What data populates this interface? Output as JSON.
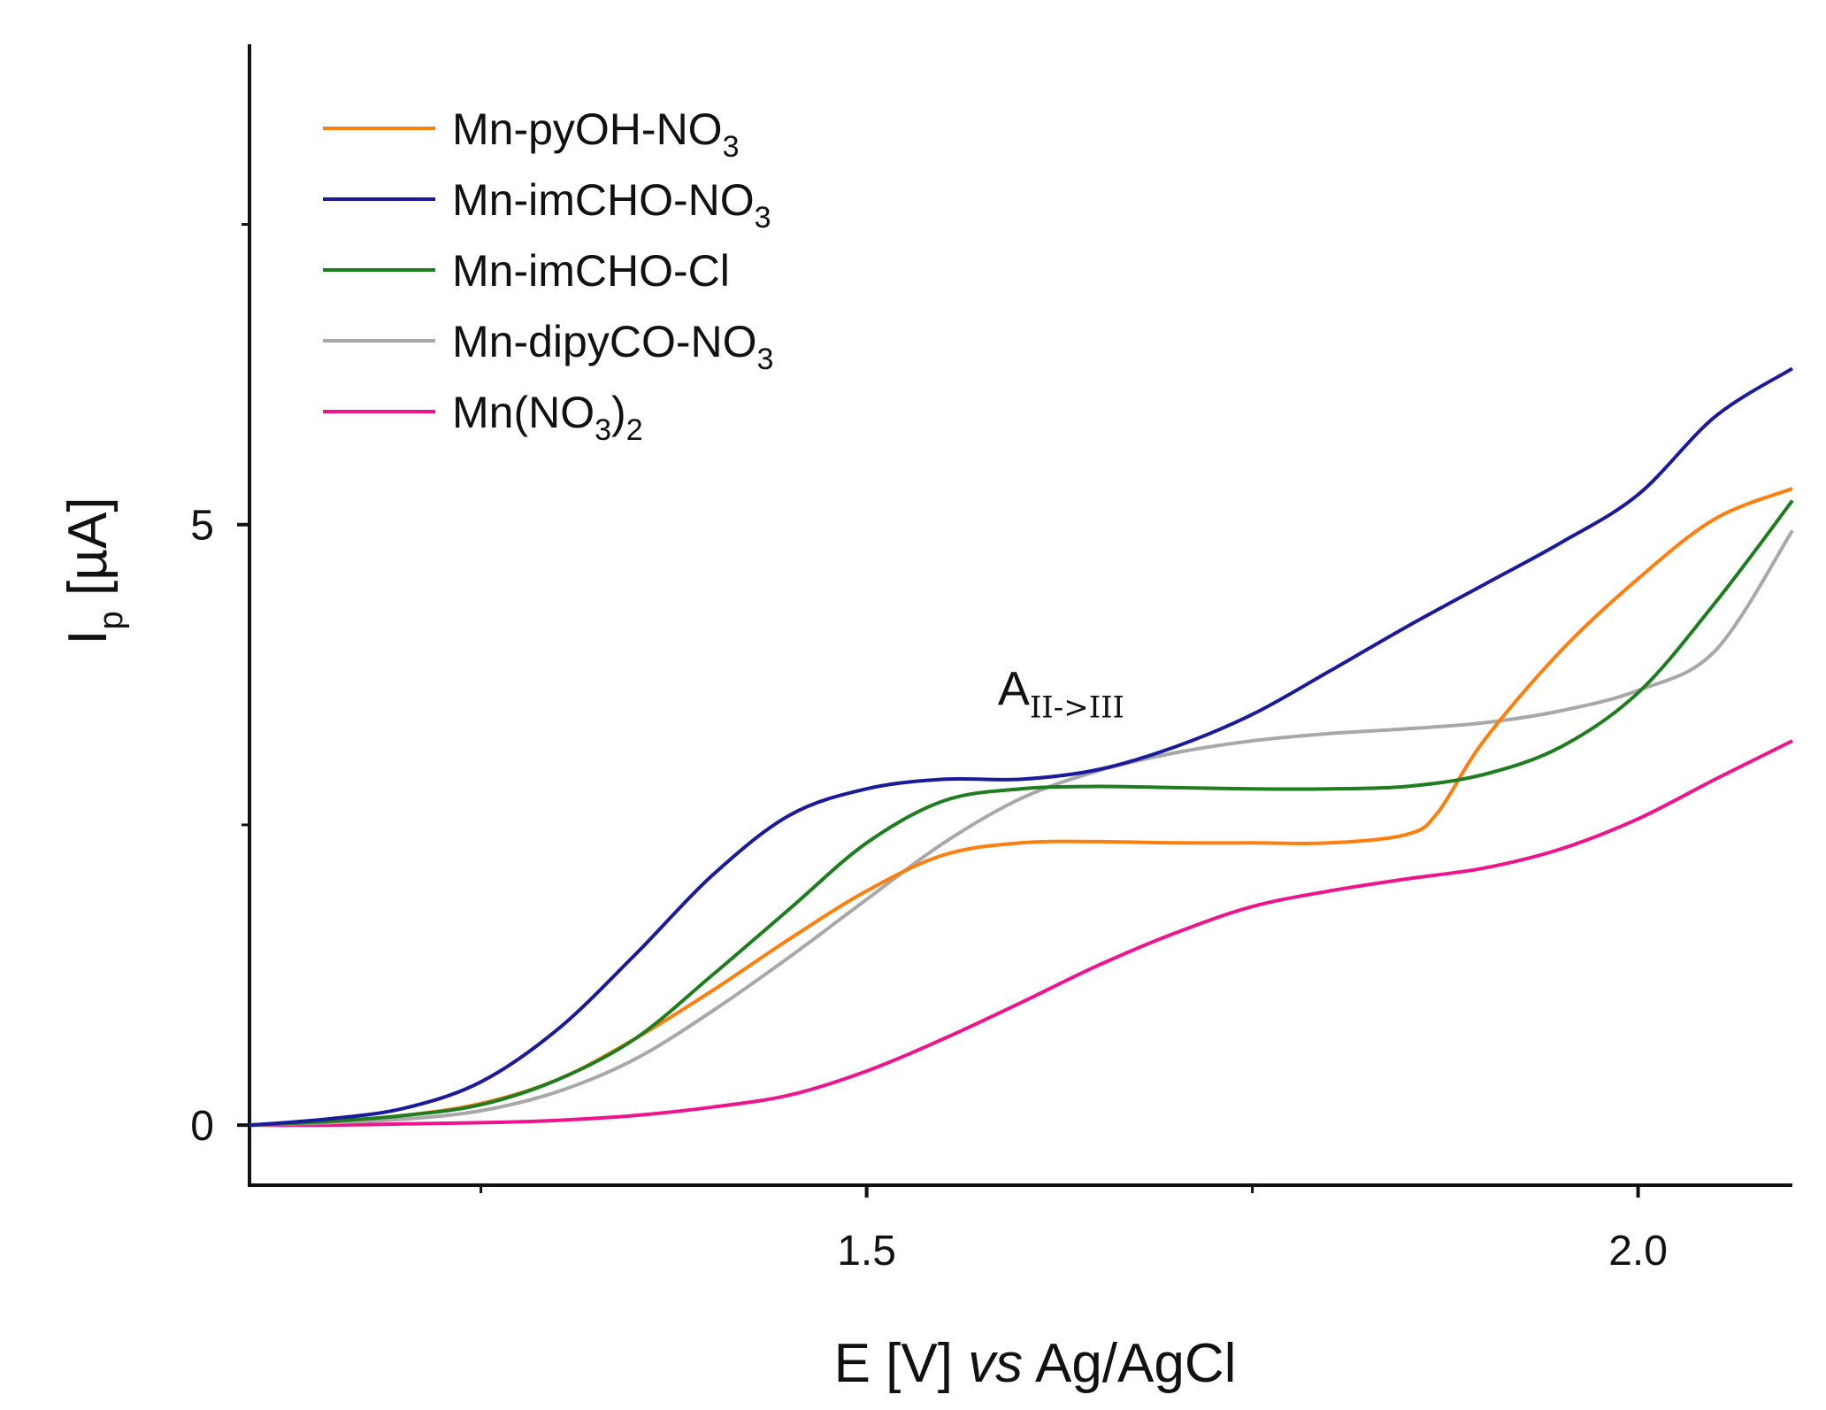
{
  "chart_data": {
    "type": "line",
    "title": "",
    "xlabel": {
      "prefix": "E [V] ",
      "italic": "vs",
      "suffix": " Ag/AgCl"
    },
    "ylabel": {
      "main": "I",
      "sub": "p",
      "unit": " [µA]"
    },
    "xlim": [
      1.1,
      2.1
    ],
    "ylim": [
      -0.5,
      9.0
    ],
    "xticks": [
      {
        "value": 1.5,
        "label": "1.5"
      },
      {
        "value": 2.0,
        "label": "2.0"
      }
    ],
    "xminor": [
      1.25,
      1.75
    ],
    "yticks": [
      {
        "value": 0,
        "label": "0"
      },
      {
        "value": 5,
        "label": "5"
      }
    ],
    "yminor": [
      2.5,
      7.5
    ],
    "grid": false,
    "legend_position": "top-left",
    "annotation": {
      "main": "A",
      "sub": "II->III",
      "x": 1.585,
      "y": 3.5
    },
    "series": [
      {
        "name": "Mn-pyOH-NO3",
        "label_main": "Mn-pyOH-NO",
        "label_sub": "3",
        "label_tail": "",
        "color": "#ff7f0e",
        "x": [
          1.1,
          1.15,
          1.2,
          1.25,
          1.3,
          1.35,
          1.4,
          1.45,
          1.5,
          1.55,
          1.6,
          1.65,
          1.7,
          1.75,
          1.8,
          1.85,
          1.87,
          1.9,
          1.95,
          2.0,
          2.05,
          2.1
        ],
        "y": [
          0.0,
          0.03,
          0.08,
          0.18,
          0.38,
          0.72,
          1.12,
          1.55,
          1.95,
          2.25,
          2.35,
          2.36,
          2.35,
          2.35,
          2.35,
          2.42,
          2.6,
          3.2,
          3.95,
          4.55,
          5.05,
          5.3
        ]
      },
      {
        "name": "Mn-imCHO-NO3",
        "label_main": "Mn-imCHO-NO",
        "label_sub": "3",
        "label_tail": "",
        "color": "#1a1a9c",
        "x": [
          1.1,
          1.15,
          1.2,
          1.25,
          1.3,
          1.35,
          1.4,
          1.45,
          1.5,
          1.55,
          1.6,
          1.65,
          1.7,
          1.75,
          1.8,
          1.85,
          1.9,
          1.95,
          2.0,
          2.05,
          2.1
        ],
        "y": [
          0.0,
          0.05,
          0.14,
          0.36,
          0.8,
          1.42,
          2.08,
          2.58,
          2.8,
          2.88,
          2.88,
          2.96,
          3.15,
          3.42,
          3.78,
          4.15,
          4.5,
          4.85,
          5.25,
          5.9,
          6.3
        ]
      },
      {
        "name": "Mn-imCHO-Cl",
        "label_main": "Mn-imCHO-Cl",
        "label_sub": "",
        "label_tail": "",
        "color": "#1e7d1e",
        "x": [
          1.1,
          1.15,
          1.2,
          1.25,
          1.3,
          1.35,
          1.4,
          1.45,
          1.5,
          1.55,
          1.6,
          1.65,
          1.7,
          1.75,
          1.8,
          1.85,
          1.9,
          1.95,
          2.0,
          2.05,
          2.1
        ],
        "y": [
          0.0,
          0.03,
          0.08,
          0.17,
          0.38,
          0.72,
          1.25,
          1.8,
          2.35,
          2.7,
          2.8,
          2.82,
          2.81,
          2.8,
          2.8,
          2.82,
          2.92,
          3.15,
          3.6,
          4.35,
          5.2
        ]
      },
      {
        "name": "Mn-dipyCO-NO3",
        "label_main": "Mn-dipyCO-NO",
        "label_sub": "3",
        "label_tail": "",
        "color": "#a8a8a8",
        "x": [
          1.1,
          1.15,
          1.2,
          1.25,
          1.3,
          1.35,
          1.4,
          1.45,
          1.5,
          1.55,
          1.6,
          1.65,
          1.7,
          1.75,
          1.8,
          1.85,
          1.9,
          1.95,
          2.0,
          2.05,
          2.1
        ],
        "y": [
          0.0,
          0.02,
          0.05,
          0.12,
          0.28,
          0.55,
          0.95,
          1.4,
          1.88,
          2.35,
          2.72,
          2.95,
          3.1,
          3.2,
          3.26,
          3.3,
          3.35,
          3.45,
          3.62,
          3.95,
          4.95
        ]
      },
      {
        "name": "Mn(NO3)2",
        "label_main": "Mn(NO",
        "label_sub": "3",
        "label_tail": ")2",
        "color": "#f0148c",
        "x": [
          1.1,
          1.15,
          1.2,
          1.25,
          1.3,
          1.35,
          1.4,
          1.45,
          1.5,
          1.55,
          1.6,
          1.65,
          1.7,
          1.75,
          1.8,
          1.85,
          1.9,
          1.95,
          2.0,
          2.05,
          2.1
        ],
        "y": [
          0.0,
          0.0,
          0.01,
          0.02,
          0.04,
          0.08,
          0.15,
          0.25,
          0.45,
          0.72,
          1.02,
          1.33,
          1.6,
          1.82,
          1.95,
          2.05,
          2.14,
          2.3,
          2.55,
          2.88,
          3.2
        ]
      }
    ]
  }
}
